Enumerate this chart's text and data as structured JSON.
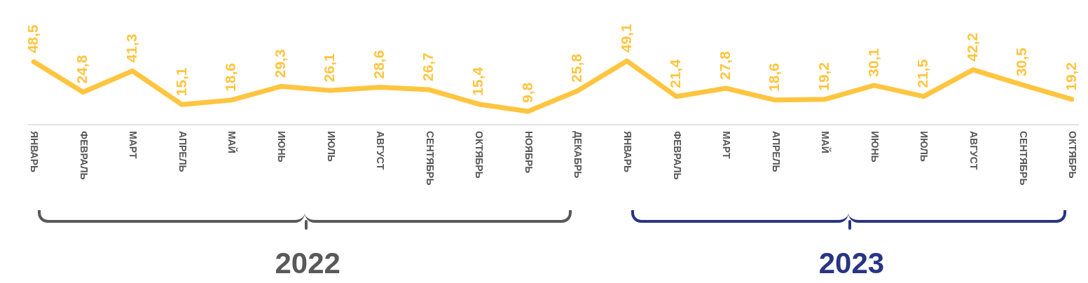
{
  "chart_data": {
    "type": "line",
    "categories": [
      "ЯНВАРЬ",
      "ФЕВРАЛЬ",
      "МАРТ",
      "АПРЕЛЬ",
      "МАЙ",
      "ИЮНЬ",
      "ИЮЛЬ",
      "АВГУСТ",
      "СЕНТЯБРЬ",
      "ОКТЯБРЬ",
      "НОЯБРЬ",
      "ДЕКАБРЬ",
      "ЯНВАРЬ",
      "ФЕВРАЛЬ",
      "МАРТ",
      "АПРЕЛЬ",
      "МАЙ",
      "ИЮНЬ",
      "ИЮЛЬ",
      "АВГУСТ",
      "СЕНТЯБРЬ",
      "ОКТЯБРЬ"
    ],
    "series": [
      {
        "color": "#ffc540",
        "values": [
          48.5,
          24.8,
          41.3,
          15.1,
          18.6,
          29.3,
          26.1,
          28.6,
          26.7,
          15.4,
          9.8,
          25.8,
          49.1,
          21.4,
          27.8,
          18.6,
          19.2,
          30.1,
          21.5,
          42.2,
          30.5,
          19.2
        ],
        "value_labels": [
          "48,5",
          "24,8",
          "41,3",
          "15,1",
          "18,6",
          "29,3",
          "26,1",
          "28,6",
          "26,7",
          "15,4",
          "9,8",
          "25,8",
          "49,1",
          "21,4",
          "27,8",
          "18,6",
          "19,2",
          "30,1",
          "21,5",
          "42,2",
          "30,5",
          "19,2"
        ]
      }
    ],
    "annotations": [
      "2022",
      "2023"
    ],
    "marker": "none",
    "grid": false,
    "legend": false
  }
}
